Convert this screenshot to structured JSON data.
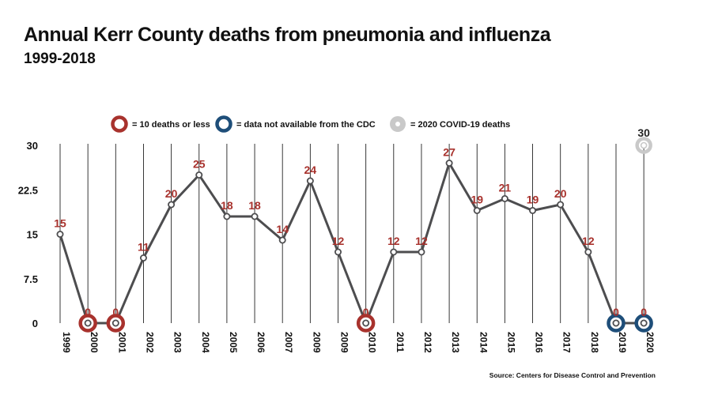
{
  "chart_data": {
    "type": "line",
    "title": "Annual Kerr County deaths from pneumonia and influenza",
    "subtitle": "1999-2018",
    "source": "Source: Centers for Disease Control and Prevention",
    "categories": [
      "1999",
      "2000",
      "2001",
      "2002",
      "2003",
      "2004",
      "2005",
      "2006",
      "2007",
      "2009",
      "2009",
      "2010",
      "2011",
      "2012",
      "2013",
      "2014",
      "2015",
      "2016",
      "2017",
      "2018",
      "2019",
      "2020"
    ],
    "values": [
      15,
      0,
      0,
      11,
      20,
      25,
      18,
      18,
      14,
      24,
      12,
      0,
      12,
      12,
      27,
      19,
      21,
      19,
      20,
      12,
      0,
      0
    ],
    "labels": [
      "15",
      "0",
      "0",
      "11",
      "20",
      "25",
      "18",
      "18",
      "14",
      "24",
      "12",
      "0",
      "12",
      "12",
      "27",
      "19",
      "21",
      "19",
      "20",
      "12",
      "0",
      "0"
    ],
    "markers": [
      "normal",
      "red",
      "red",
      "normal",
      "normal",
      "normal",
      "normal",
      "normal",
      "normal",
      "normal",
      "normal",
      "red",
      "normal",
      "normal",
      "normal",
      "normal",
      "normal",
      "normal",
      "normal",
      "normal",
      "blue",
      "blue"
    ],
    "covid_point": {
      "category": "2020",
      "value": 30,
      "label": "30"
    },
    "ylim": [
      0,
      30
    ],
    "yticks": [
      "0",
      "7.5",
      "15",
      "22.5",
      "30"
    ],
    "ytick_values": [
      0,
      7.5,
      15,
      22.5,
      30
    ],
    "legend": [
      {
        "marker": "red",
        "text": "= 10 deaths or less"
      },
      {
        "marker": "blue",
        "text": "= data not available from the CDC"
      },
      {
        "marker": "gray",
        "text": "= 2020 COVID-19 deaths"
      }
    ],
    "colors": {
      "line": "#4d4d4f",
      "red": "#a8322d",
      "blue": "#1e4e79",
      "gray": "#c9c9c9",
      "label": "#a8322d",
      "covid_label": "#222222",
      "grid": "#222222"
    }
  }
}
